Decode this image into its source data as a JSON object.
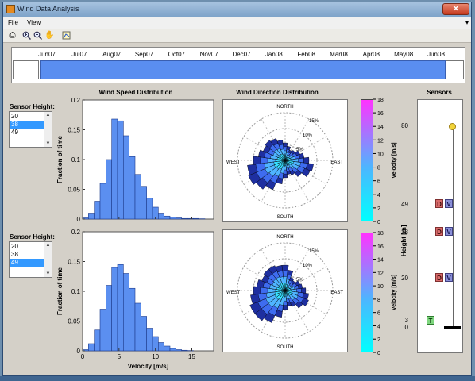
{
  "window": {
    "title": "Wind Data Analysis",
    "close": "✕"
  },
  "menu": {
    "file": "File",
    "view": "View",
    "arrow": "▾"
  },
  "toolbar": {
    "icons": [
      "print-icon",
      "zoom-in-icon",
      "zoom-out-icon",
      "pan-icon",
      "data-cursor-icon"
    ]
  },
  "timeline": {
    "months": [
      "Jun07",
      "Jul07",
      "Aug07",
      "Sep07",
      "Oct07",
      "Nov07",
      "Dec07",
      "Jan08",
      "Feb08",
      "Mar08",
      "Apr08",
      "May08",
      "Jun08"
    ]
  },
  "headers": {
    "speed": "Wind Speed Distribution",
    "direction": "Wind Direction Distribution",
    "sensors": "Sensors"
  },
  "left_panels": [
    {
      "label": "Sensor Height:",
      "options": [
        "20",
        "38",
        "49"
      ],
      "selected": "38"
    },
    {
      "label": "Sensor Height:",
      "options": [
        "20",
        "38",
        "49"
      ],
      "selected": "49"
    }
  ],
  "histograms": {
    "ylabel": "Fraction of time",
    "xlabel": "Velocity [m/s]",
    "yticks": [
      "0",
      "0.05",
      "0.1",
      "0.15",
      "0.2"
    ],
    "xticks": [
      "0",
      "5",
      "10",
      "15"
    ]
  },
  "chart_data": [
    {
      "type": "bar",
      "title": "Wind Speed Distribution",
      "ylabel": "Fraction of time",
      "xlim": [
        0,
        18
      ],
      "ylim": [
        0,
        0.2
      ],
      "bin_width": 0.8,
      "values": [
        0.002,
        0.01,
        0.03,
        0.06,
        0.1,
        0.168,
        0.165,
        0.14,
        0.105,
        0.075,
        0.055,
        0.035,
        0.02,
        0.01,
        0.005,
        0.003,
        0.002,
        0.001,
        0.001,
        0.001,
        0.0005
      ]
    },
    {
      "type": "bar",
      "xlabel": "Velocity [m/s]",
      "ylabel": "Fraction of time",
      "xlim": [
        0,
        18
      ],
      "ylim": [
        0,
        0.2
      ],
      "bin_width": 0.8,
      "values": [
        0.002,
        0.012,
        0.035,
        0.07,
        0.11,
        0.14,
        0.145,
        0.13,
        0.105,
        0.08,
        0.058,
        0.038,
        0.024,
        0.014,
        0.008,
        0.004,
        0.002,
        0.001,
        0.0005
      ]
    }
  ],
  "rose": {
    "north": "NORTH",
    "south": "SOUTH",
    "east": "EAST",
    "west": "WEST",
    "rings": [
      "5%",
      "10%",
      "15%"
    ]
  },
  "colorbar": {
    "label": "Velocity [m/s]",
    "ticks": [
      "0",
      "2",
      "4",
      "6",
      "8",
      "10",
      "12",
      "14",
      "16",
      "18"
    ]
  },
  "sensors": {
    "ylabel": "Height [m]",
    "ticks": [
      "80",
      "49",
      "38",
      "20",
      "3",
      "0"
    ],
    "items": [
      {
        "height": "49",
        "d": "D",
        "v": "V"
      },
      {
        "height": "38",
        "d": "D",
        "v": "V"
      },
      {
        "height": "20",
        "d": "D",
        "v": "V"
      }
    ],
    "t_label": "T"
  }
}
